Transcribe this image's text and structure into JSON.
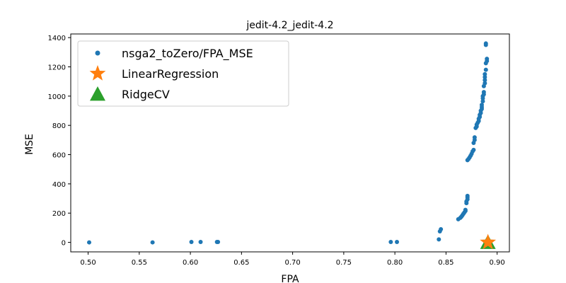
{
  "chart_data": {
    "type": "scatter",
    "title": "jedit-4.2_jedit-4.2",
    "xlabel": "FPA",
    "ylabel": "MSE",
    "xlim": [
      0.483,
      0.912
    ],
    "ylim": [
      -65,
      1425
    ],
    "xticks": [
      "0.50",
      "0.55",
      "0.60",
      "0.65",
      "0.70",
      "0.75",
      "0.80",
      "0.85",
      "0.90"
    ],
    "yticks": [
      "0",
      "200",
      "400",
      "600",
      "800",
      "1000",
      "1200",
      "1400"
    ],
    "grid": false,
    "legend_position": "top-left",
    "series": [
      {
        "name": "nsga2_toZero/FPA_MSE",
        "marker": "circle",
        "color": "#1f77b4",
        "points": [
          [
            0.501,
            0
          ],
          [
            0.563,
            0
          ],
          [
            0.601,
            3
          ],
          [
            0.61,
            3
          ],
          [
            0.626,
            3
          ],
          [
            0.627,
            3
          ],
          [
            0.796,
            3
          ],
          [
            0.802,
            3
          ],
          [
            0.843,
            20
          ],
          [
            0.844,
            75
          ],
          [
            0.845,
            90
          ],
          [
            0.862,
            158
          ],
          [
            0.864,
            168
          ],
          [
            0.865,
            175
          ],
          [
            0.866,
            185
          ],
          [
            0.867,
            195
          ],
          [
            0.868,
            205
          ],
          [
            0.869,
            215
          ],
          [
            0.869,
            222
          ],
          [
            0.87,
            268
          ],
          [
            0.87,
            280
          ],
          [
            0.871,
            295
          ],
          [
            0.871,
            308
          ],
          [
            0.871,
            318
          ],
          [
            0.871,
            562
          ],
          [
            0.872,
            570
          ],
          [
            0.873,
            580
          ],
          [
            0.874,
            592
          ],
          [
            0.875,
            605
          ],
          [
            0.876,
            622
          ],
          [
            0.877,
            632
          ],
          [
            0.877,
            680
          ],
          [
            0.878,
            700
          ],
          [
            0.878,
            718
          ],
          [
            0.879,
            782
          ],
          [
            0.88,
            792
          ],
          [
            0.88,
            805
          ],
          [
            0.881,
            818
          ],
          [
            0.882,
            830
          ],
          [
            0.882,
            845
          ],
          [
            0.883,
            858
          ],
          [
            0.883,
            872
          ],
          [
            0.884,
            885
          ],
          [
            0.884,
            900
          ],
          [
            0.885,
            912
          ],
          [
            0.885,
            925
          ],
          [
            0.885,
            940
          ],
          [
            0.886,
            965
          ],
          [
            0.886,
            985
          ],
          [
            0.886,
            1000
          ],
          [
            0.887,
            1012
          ],
          [
            0.887,
            1028
          ],
          [
            0.887,
            1068
          ],
          [
            0.888,
            1088
          ],
          [
            0.888,
            1110
          ],
          [
            0.888,
            1130
          ],
          [
            0.888,
            1150
          ],
          [
            0.889,
            1180
          ],
          [
            0.889,
            1225
          ],
          [
            0.89,
            1240
          ],
          [
            0.89,
            1255
          ],
          [
            0.889,
            1350
          ],
          [
            0.889,
            1360
          ]
        ]
      },
      {
        "name": "LinearRegression",
        "marker": "star",
        "color": "#ff7f0e",
        "points": [
          [
            0.891,
            0
          ]
        ]
      },
      {
        "name": "RidgeCV",
        "marker": "triangle",
        "color": "#2ca02c",
        "points": [
          [
            0.891,
            0
          ]
        ]
      }
    ]
  }
}
